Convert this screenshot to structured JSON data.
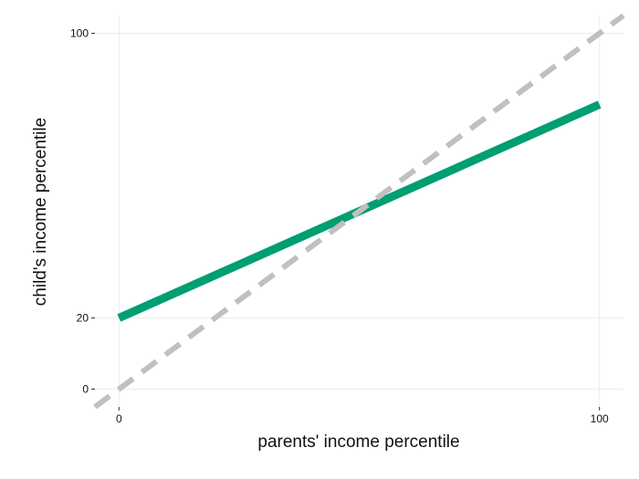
{
  "chart_data": {
    "type": "line",
    "xlabel": "parents' income percentile",
    "ylabel": "child's income percentile",
    "xlim": [
      -5,
      105
    ],
    "ylim": [
      -5,
      105
    ],
    "x_ticks": [
      0,
      100
    ],
    "y_ticks": [
      0,
      20,
      100
    ],
    "grid": true,
    "series": [
      {
        "style": "solid",
        "color": "#009e73",
        "x": [
          0,
          100
        ],
        "y": [
          20,
          80
        ]
      },
      {
        "style": "dashed",
        "color": "#c0c0c0",
        "x": [
          -5,
          105
        ],
        "y": [
          -5,
          105
        ]
      }
    ]
  }
}
